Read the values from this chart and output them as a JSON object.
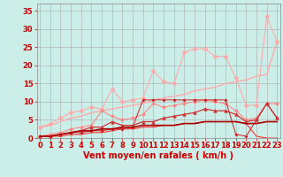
{
  "xlabel": "Vent moyen/en rafales ( km/h )",
  "background_color": "#cceee8",
  "grid_color": "#aaaaaa",
  "x": [
    0,
    1,
    2,
    3,
    4,
    5,
    6,
    7,
    8,
    9,
    10,
    11,
    12,
    13,
    14,
    15,
    16,
    17,
    18,
    19,
    20,
    21,
    22,
    23
  ],
  "lines": [
    {
      "y": [
        3.0,
        3.5,
        4.5,
        5.5,
        6.0,
        7.0,
        7.5,
        8.0,
        8.5,
        9.0,
        9.5,
        10.5,
        11.0,
        11.5,
        12.0,
        13.0,
        13.5,
        14.0,
        15.0,
        15.5,
        16.0,
        17.0,
        17.5,
        26.5
      ],
      "color": "#ffaaaa",
      "marker": null,
      "lw": 1.0,
      "zorder": 2
    },
    {
      "y": [
        3.0,
        4.0,
        5.5,
        7.0,
        7.5,
        8.5,
        8.0,
        13.5,
        10.0,
        10.5,
        11.0,
        18.5,
        15.5,
        15.0,
        23.5,
        24.5,
        24.5,
        22.5,
        22.5,
        16.5,
        9.0,
        9.0,
        33.5,
        26.5
      ],
      "color": "#ffaaaa",
      "marker": "D",
      "markersize": 2.5,
      "lw": 0.8,
      "zorder": 3
    },
    {
      "y": [
        0.5,
        1.0,
        1.5,
        2.5,
        3.0,
        3.5,
        7.5,
        6.0,
        5.0,
        5.5,
        6.5,
        9.5,
        8.5,
        9.0,
        9.5,
        10.0,
        10.5,
        10.0,
        9.5,
        7.5,
        5.0,
        5.5,
        9.5,
        9.5
      ],
      "color": "#ff8888",
      "marker": "D",
      "markersize": 2.0,
      "lw": 0.8,
      "zorder": 3
    },
    {
      "y": [
        0.5,
        0.5,
        1.0,
        1.5,
        2.0,
        3.0,
        3.0,
        4.5,
        3.5,
        3.5,
        4.5,
        4.5,
        5.5,
        6.0,
        6.5,
        7.0,
        8.0,
        7.5,
        7.5,
        6.5,
        4.5,
        5.0,
        9.5,
        5.5
      ],
      "color": "#cc3333",
      "marker": "^",
      "markersize": 2.5,
      "lw": 0.9,
      "zorder": 4
    },
    {
      "y": [
        0.5,
        0.5,
        1.0,
        1.5,
        2.0,
        2.0,
        2.5,
        2.5,
        3.0,
        3.0,
        3.5,
        3.5,
        3.5,
        3.5,
        4.0,
        4.0,
        4.5,
        4.5,
        4.5,
        4.5,
        4.0,
        4.0,
        4.5,
        4.5
      ],
      "color": "#aa0000",
      "marker": null,
      "lw": 1.2,
      "zorder": 4
    },
    {
      "y": [
        0.5,
        0.5,
        1.0,
        1.5,
        1.5,
        2.0,
        2.0,
        2.5,
        2.5,
        3.0,
        10.5,
        10.5,
        10.5,
        10.5,
        10.5,
        10.5,
        10.5,
        10.5,
        10.5,
        1.0,
        0.5,
        5.0,
        9.5,
        5.5
      ],
      "color": "#cc2222",
      "marker": "P",
      "markersize": 2.0,
      "lw": 0.7,
      "zorder": 3
    },
    {
      "y": [
        0.5,
        0.5,
        0.5,
        1.0,
        1.0,
        1.5,
        1.5,
        2.0,
        2.5,
        2.5,
        3.0,
        3.0,
        3.5,
        3.5,
        4.0,
        4.0,
        4.5,
        4.5,
        4.5,
        4.5,
        4.0,
        0.5,
        0.0,
        0.0
      ],
      "color": "#ff2222",
      "marker": null,
      "lw": 0.7,
      "zorder": 2
    }
  ],
  "xlim": [
    -0.3,
    23.3
  ],
  "ylim": [
    0,
    37
  ],
  "yticks": [
    0,
    5,
    10,
    15,
    20,
    25,
    30,
    35
  ],
  "xticks": [
    0,
    1,
    2,
    3,
    4,
    5,
    6,
    7,
    8,
    9,
    10,
    11,
    12,
    13,
    14,
    15,
    16,
    17,
    18,
    19,
    20,
    21,
    22,
    23
  ],
  "tick_color": "#cc0000",
  "label_color": "#cc0000",
  "xlabel_fontsize": 7,
  "tick_fontsize": 6
}
